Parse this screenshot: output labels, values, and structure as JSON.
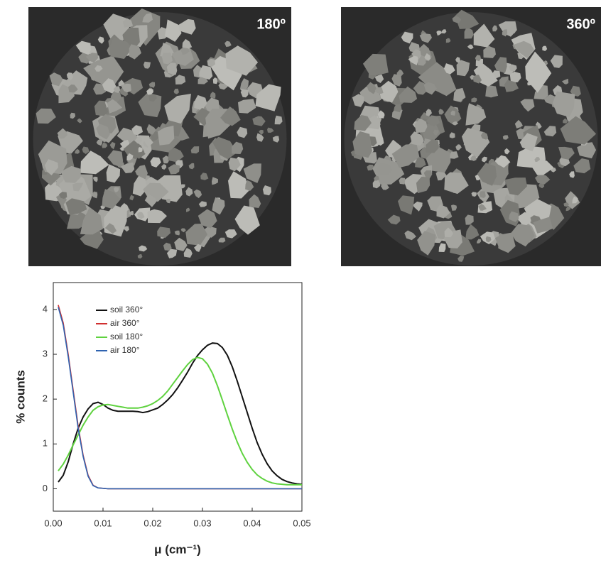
{
  "images": [
    {
      "label": "180º"
    },
    {
      "label": "360º"
    }
  ],
  "chart_data": {
    "type": "line",
    "x_label": "μ (cm⁻¹)",
    "y_label": "% counts",
    "x": [
      0.001,
      0.002,
      0.003,
      0.004,
      0.005,
      0.006,
      0.007,
      0.008,
      0.009,
      0.01,
      0.011,
      0.012,
      0.013,
      0.014,
      0.015,
      0.016,
      0.017,
      0.018,
      0.019,
      0.02,
      0.021,
      0.022,
      0.023,
      0.024,
      0.025,
      0.026,
      0.027,
      0.028,
      0.029,
      0.03,
      0.031,
      0.032,
      0.033,
      0.034,
      0.035,
      0.036,
      0.037,
      0.038,
      0.039,
      0.04,
      0.041,
      0.042,
      0.043,
      0.044,
      0.045,
      0.046,
      0.047,
      0.048,
      0.049,
      0.05
    ],
    "series": [
      {
        "name": "soil 360°",
        "color": "#111111",
        "values": [
          0.15,
          0.3,
          0.6,
          1.0,
          1.35,
          1.6,
          1.78,
          1.9,
          1.93,
          1.88,
          1.8,
          1.75,
          1.73,
          1.73,
          1.73,
          1.73,
          1.72,
          1.7,
          1.72,
          1.76,
          1.8,
          1.88,
          1.98,
          2.1,
          2.25,
          2.42,
          2.6,
          2.8,
          2.97,
          3.1,
          3.2,
          3.25,
          3.24,
          3.15,
          2.98,
          2.72,
          2.4,
          2.05,
          1.7,
          1.35,
          1.03,
          0.77,
          0.56,
          0.4,
          0.29,
          0.21,
          0.16,
          0.13,
          0.11,
          0.1
        ]
      },
      {
        "name": "air 360°",
        "color": "#d03030",
        "values": [
          4.1,
          3.7,
          3.0,
          2.2,
          1.4,
          0.75,
          0.3,
          0.08,
          0.02,
          0.01,
          0,
          0,
          0,
          0,
          0,
          0,
          0,
          0,
          0,
          0,
          0,
          0,
          0,
          0,
          0,
          0,
          0,
          0,
          0,
          0,
          0,
          0,
          0,
          0,
          0,
          0,
          0,
          0,
          0,
          0,
          0,
          0,
          0,
          0,
          0,
          0,
          0,
          0,
          0,
          0
        ]
      },
      {
        "name": "soil 180°",
        "color": "#5fd23f",
        "values": [
          0.4,
          0.55,
          0.75,
          0.98,
          1.2,
          1.42,
          1.6,
          1.75,
          1.83,
          1.87,
          1.88,
          1.86,
          1.84,
          1.82,
          1.8,
          1.8,
          1.8,
          1.82,
          1.85,
          1.9,
          1.97,
          2.06,
          2.18,
          2.33,
          2.48,
          2.63,
          2.77,
          2.88,
          2.93,
          2.9,
          2.78,
          2.58,
          2.3,
          1.98,
          1.65,
          1.33,
          1.04,
          0.79,
          0.59,
          0.43,
          0.31,
          0.23,
          0.17,
          0.13,
          0.11,
          0.1,
          0.09,
          0.09,
          0.09,
          0.09
        ]
      },
      {
        "name": "air 180°",
        "color": "#2f63b0",
        "values": [
          4.05,
          3.65,
          2.95,
          2.15,
          1.35,
          0.72,
          0.28,
          0.07,
          0.02,
          0.01,
          0,
          0,
          0,
          0,
          0,
          0,
          0,
          0,
          0,
          0,
          0,
          0,
          0,
          0,
          0,
          0,
          0,
          0,
          0,
          0,
          0,
          0,
          0,
          0,
          0,
          0,
          0,
          0,
          0,
          0,
          0,
          0,
          0,
          0,
          0,
          0,
          0,
          0,
          0,
          0
        ]
      }
    ],
    "xlim": [
      0,
      0.05
    ],
    "xticks": [
      {
        "value": 0,
        "label": "0.00"
      },
      0.01,
      0.02,
      0.03,
      0.04,
      0.05
    ],
    "ylim": [
      -0.5,
      4.6
    ],
    "yticks": [
      0,
      1,
      2,
      3,
      4
    ],
    "legend": "upper left"
  }
}
